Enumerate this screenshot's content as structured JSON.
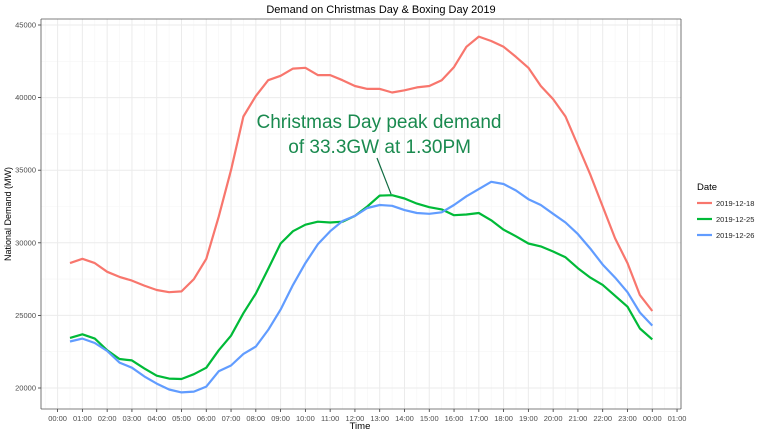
{
  "chart_data": {
    "type": "line",
    "title": "Demand on Christmas Day & Boxing Day 2019",
    "xlabel": "Time",
    "ylabel": "National Demand (MW)",
    "x_tick_labels": [
      "00:00",
      "01:00",
      "02:00",
      "03:00",
      "04:00",
      "05:00",
      "06:00",
      "07:00",
      "08:00",
      "09:00",
      "10:00",
      "11:00",
      "12:00",
      "13:00",
      "14:00",
      "15:00",
      "16:00",
      "17:00",
      "18:00",
      "19:00",
      "20:00",
      "21:00",
      "22:00",
      "23:00",
      "00:00",
      "01:00"
    ],
    "y_ticks": [
      20000,
      25000,
      30000,
      35000,
      40000,
      45000
    ],
    "ylim": [
      18554,
      45413
    ],
    "xlim_hours": [
      -0.67,
      25.16
    ],
    "grid": true,
    "legend": {
      "title": "Date",
      "position": "right"
    },
    "x": [
      "00:30",
      "01:00",
      "01:30",
      "02:00",
      "02:30",
      "03:00",
      "03:30",
      "04:00",
      "04:30",
      "05:00",
      "05:30",
      "06:00",
      "06:30",
      "07:00",
      "07:30",
      "08:00",
      "08:30",
      "09:00",
      "09:30",
      "10:00",
      "10:30",
      "11:00",
      "11:30",
      "12:00",
      "12:30",
      "13:00",
      "13:30",
      "14:00",
      "14:30",
      "15:00",
      "15:30",
      "16:00",
      "16:30",
      "17:00",
      "17:30",
      "18:00",
      "18:30",
      "19:00",
      "19:30",
      "20:00",
      "20:30",
      "21:00",
      "21:30",
      "22:00",
      "22:30",
      "23:00",
      "23:30",
      "00:00"
    ],
    "series": [
      {
        "name": "2019-12-18",
        "color": "#F8766D",
        "values": [
          28600,
          28900,
          28600,
          28000,
          27650,
          27400,
          27050,
          26750,
          26600,
          26650,
          27500,
          28900,
          31800,
          35000,
          38700,
          40100,
          41200,
          41500,
          42000,
          42050,
          41550,
          41550,
          41200,
          40800,
          40600,
          40600,
          40350,
          40500,
          40700,
          40800,
          41200,
          42100,
          43500,
          44200,
          43900,
          43500,
          42800,
          42050,
          40800,
          39900,
          38700,
          36700,
          34700,
          32500,
          30300,
          28600,
          26400,
          25300
        ]
      },
      {
        "name": "2019-12-25",
        "color": "#00BA38",
        "values": [
          23450,
          23700,
          23400,
          22600,
          22000,
          21900,
          21350,
          20850,
          20650,
          20620,
          20950,
          21400,
          22600,
          23600,
          25150,
          26500,
          28200,
          29950,
          30800,
          31250,
          31450,
          31400,
          31450,
          31850,
          32500,
          33250,
          33280,
          33050,
          32700,
          32450,
          32300,
          31900,
          31950,
          32050,
          31550,
          30900,
          30450,
          29950,
          29750,
          29400,
          29000,
          28250,
          27600,
          27100,
          26350,
          25600,
          24100,
          23350
        ]
      },
      {
        "name": "2019-12-26",
        "color": "#619CFF",
        "values": [
          23200,
          23400,
          23100,
          22550,
          21750,
          21400,
          20800,
          20300,
          19900,
          19700,
          19750,
          20100,
          21150,
          21550,
          22350,
          22850,
          24000,
          25400,
          27100,
          28600,
          29900,
          30800,
          31500,
          31850,
          32400,
          32600,
          32550,
          32250,
          32050,
          32000,
          32100,
          32600,
          33200,
          33700,
          34200,
          34050,
          33600,
          33000,
          32600,
          32000,
          31400,
          30600,
          29600,
          28500,
          27600,
          26600,
          25200,
          24300
        ]
      }
    ],
    "annotations": [
      {
        "lines": [
          "Christmas Day peak demand",
          " of 33.3GW at 1.30PM"
        ],
        "color": "#1a8a4f",
        "points_to": {
          "x": "13:30",
          "y": 33280
        }
      }
    ]
  }
}
